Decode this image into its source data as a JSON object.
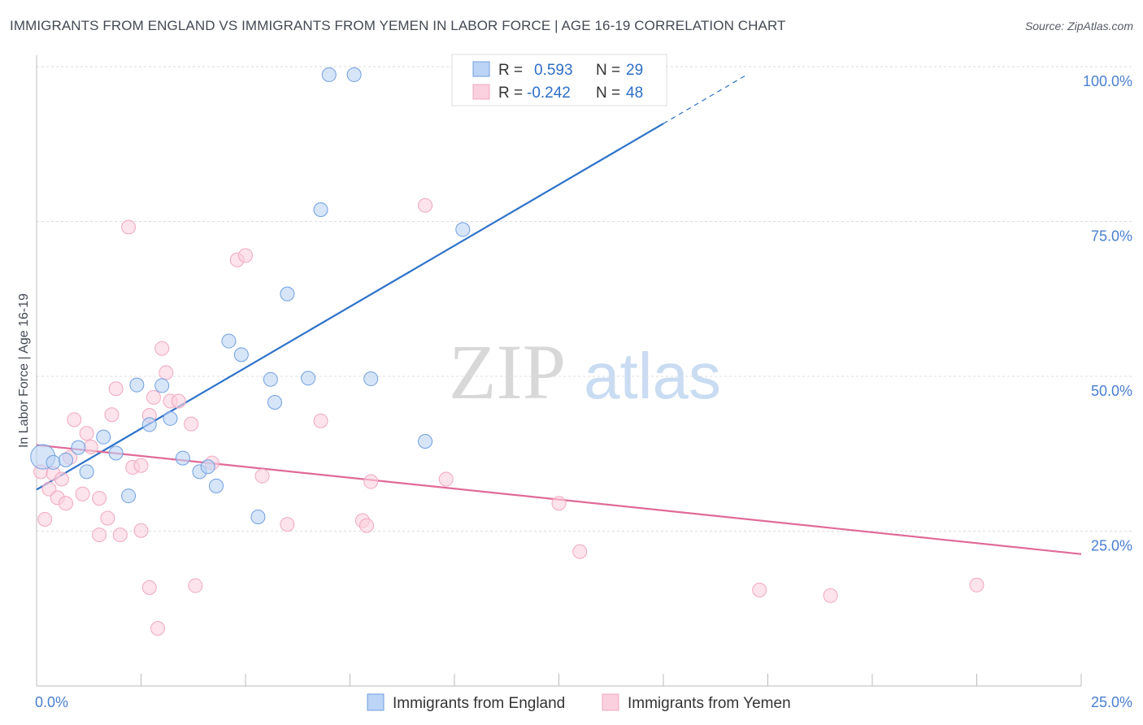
{
  "chart_data": {
    "type": "scatter",
    "title": "IMMIGRANTS FROM ENGLAND VS IMMIGRANTS FROM YEMEN IN LABOR FORCE | AGE 16-19 CORRELATION CHART",
    "source": "Source: ZipAtlas.com",
    "watermark": {
      "zip": "ZIP",
      "atlas": "atlas"
    },
    "xlabel": "",
    "ylabel": "In Labor Force | Age 16-19",
    "xlim": [
      0,
      25
    ],
    "ylim": [
      0,
      100
    ],
    "x_tick_labels": [
      {
        "value": 0,
        "label": "0.0%"
      },
      {
        "value": 25,
        "label": "25.0%"
      }
    ],
    "y_tick_labels": [
      {
        "value": 25,
        "label": "25.0%"
      },
      {
        "value": 50,
        "label": "50.0%"
      },
      {
        "value": 75,
        "label": "75.0%"
      },
      {
        "value": 100,
        "label": "100.0%"
      }
    ],
    "grid": true,
    "legend_position": "top-center",
    "series": [
      {
        "name": "Immigrants from England",
        "color": "#6f9fe0",
        "fill": "#bcd4f5",
        "line_color": "#2e72c9",
        "R": "0.593",
        "N": "29",
        "trend": {
          "x0": 0,
          "y0": 31.7,
          "x1": 15,
          "y1": 90.8,
          "dash_x1": 17,
          "dash_y1": 98.7
        },
        "points": [
          {
            "x": 0.15,
            "y": 37.0,
            "big": true
          },
          {
            "x": 0.4,
            "y": 36.1
          },
          {
            "x": 0.7,
            "y": 36.5
          },
          {
            "x": 1.0,
            "y": 38.5
          },
          {
            "x": 1.2,
            "y": 34.6
          },
          {
            "x": 1.6,
            "y": 40.2
          },
          {
            "x": 1.9,
            "y": 37.6
          },
          {
            "x": 2.2,
            "y": 30.7
          },
          {
            "x": 2.4,
            "y": 48.6
          },
          {
            "x": 2.7,
            "y": 42.2
          },
          {
            "x": 3.0,
            "y": 48.5
          },
          {
            "x": 3.2,
            "y": 43.2
          },
          {
            "x": 3.5,
            "y": 36.8
          },
          {
            "x": 3.9,
            "y": 34.6
          },
          {
            "x": 4.1,
            "y": 35.4
          },
          {
            "x": 4.3,
            "y": 32.3
          },
          {
            "x": 4.6,
            "y": 55.7
          },
          {
            "x": 4.9,
            "y": 53.5
          },
          {
            "x": 5.3,
            "y": 27.3
          },
          {
            "x": 5.6,
            "y": 49.5
          },
          {
            "x": 5.7,
            "y": 45.8
          },
          {
            "x": 6.0,
            "y": 63.3
          },
          {
            "x": 6.5,
            "y": 49.7
          },
          {
            "x": 6.8,
            "y": 76.9
          },
          {
            "x": 7.0,
            "y": 98.7
          },
          {
            "x": 7.6,
            "y": 98.7
          },
          {
            "x": 8.0,
            "y": 49.6
          },
          {
            "x": 9.3,
            "y": 39.5
          },
          {
            "x": 10.2,
            "y": 73.7
          }
        ]
      },
      {
        "name": "Immigrants from Yemen",
        "color": "#f0a8c0",
        "fill": "#fbd0de",
        "line_color": "#e06a98",
        "R": "-0.242",
        "N": "48",
        "trend": {
          "x0": 0,
          "y0": 38.9,
          "x1": 25,
          "y1": 21.3
        },
        "points": [
          {
            "x": 0.1,
            "y": 34.6
          },
          {
            "x": 0.2,
            "y": 26.9
          },
          {
            "x": 0.3,
            "y": 31.8
          },
          {
            "x": 0.4,
            "y": 34.3
          },
          {
            "x": 0.5,
            "y": 30.4
          },
          {
            "x": 0.6,
            "y": 33.4
          },
          {
            "x": 0.7,
            "y": 29.5
          },
          {
            "x": 0.8,
            "y": 36.9
          },
          {
            "x": 0.9,
            "y": 43.0
          },
          {
            "x": 1.1,
            "y": 31.0
          },
          {
            "x": 1.2,
            "y": 40.8
          },
          {
            "x": 1.3,
            "y": 38.6
          },
          {
            "x": 1.5,
            "y": 30.3
          },
          {
            "x": 1.5,
            "y": 24.4
          },
          {
            "x": 1.7,
            "y": 27.1
          },
          {
            "x": 1.8,
            "y": 43.8
          },
          {
            "x": 1.9,
            "y": 48.0
          },
          {
            "x": 2.0,
            "y": 24.4
          },
          {
            "x": 2.2,
            "y": 74.1
          },
          {
            "x": 2.3,
            "y": 35.3
          },
          {
            "x": 2.5,
            "y": 35.6
          },
          {
            "x": 2.5,
            "y": 25.1
          },
          {
            "x": 2.7,
            "y": 15.9
          },
          {
            "x": 2.7,
            "y": 43.7
          },
          {
            "x": 2.8,
            "y": 46.6
          },
          {
            "x": 2.9,
            "y": 9.3
          },
          {
            "x": 3.0,
            "y": 54.5
          },
          {
            "x": 3.1,
            "y": 50.6
          },
          {
            "x": 3.2,
            "y": 46.0
          },
          {
            "x": 3.4,
            "y": 46.0
          },
          {
            "x": 3.7,
            "y": 42.3
          },
          {
            "x": 3.8,
            "y": 16.2
          },
          {
            "x": 4.2,
            "y": 36.0
          },
          {
            "x": 4.8,
            "y": 68.8
          },
          {
            "x": 5.0,
            "y": 69.5
          },
          {
            "x": 5.4,
            "y": 33.9
          },
          {
            "x": 6.0,
            "y": 26.1
          },
          {
            "x": 6.8,
            "y": 42.8
          },
          {
            "x": 7.8,
            "y": 26.7
          },
          {
            "x": 7.9,
            "y": 25.9
          },
          {
            "x": 8.0,
            "y": 33.0
          },
          {
            "x": 9.3,
            "y": 77.6
          },
          {
            "x": 9.8,
            "y": 33.4
          },
          {
            "x": 12.5,
            "y": 29.5
          },
          {
            "x": 13.0,
            "y": 21.7
          },
          {
            "x": 17.3,
            "y": 15.5
          },
          {
            "x": 19.0,
            "y": 14.6
          },
          {
            "x": 22.5,
            "y": 16.3
          }
        ]
      }
    ]
  }
}
